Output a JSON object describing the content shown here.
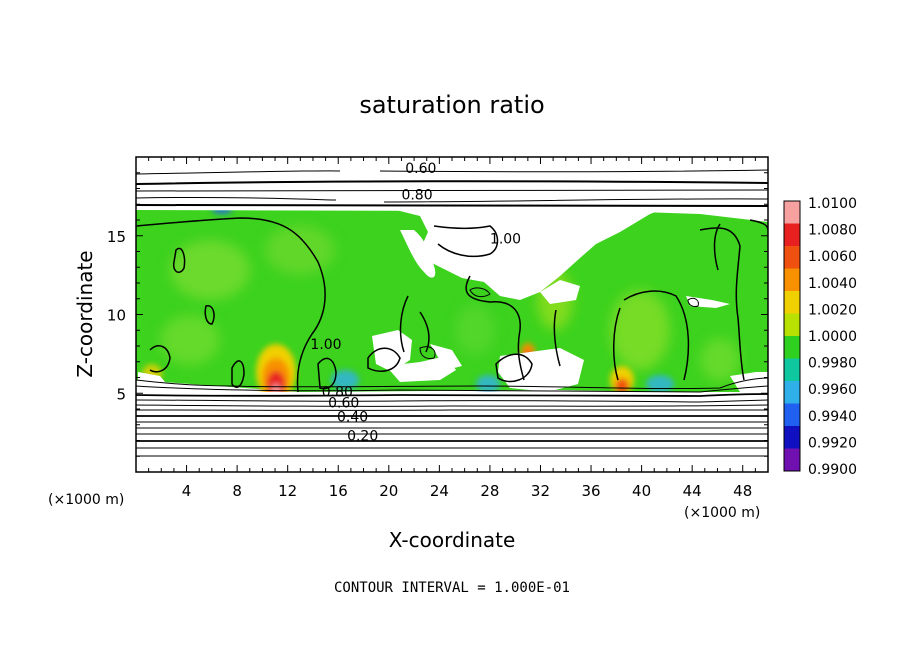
{
  "chart_data": {
    "type": "heatmap",
    "title": "saturation ratio",
    "xlabel": "X-coordinate",
    "ylabel": "Z-coordinate",
    "x_unit_left": "(×1000 m)",
    "x_unit_right": "(×1000 m)",
    "xlim": [
      0,
      50
    ],
    "ylim": [
      0,
      20
    ],
    "xticks": [
      "4",
      "8",
      "12",
      "16",
      "20",
      "24",
      "28",
      "32",
      "36",
      "40",
      "44",
      "48"
    ],
    "yticks": [
      "5",
      "10",
      "15"
    ],
    "footer": "CONTOUR INTERVAL = 1.000E-01",
    "colorbar": {
      "labels": [
        "1.0100",
        "1.0080",
        "1.0060",
        "1.0040",
        "1.0020",
        "1.0000",
        "0.9980",
        "0.9960",
        "0.9940",
        "0.9920",
        "0.9900"
      ],
      "colors": [
        "#f7a0a0",
        "#e82020",
        "#f05010",
        "#f89000",
        "#f0d000",
        "#b8e000",
        "#30d020",
        "#10c8a0",
        "#30b0e8",
        "#2060f0",
        "#1010c0",
        "#7010b0"
      ]
    },
    "contour_labels": [
      {
        "text": "0.60",
        "x": 21.3,
        "z": 19.0
      },
      {
        "text": "0.80",
        "x": 21.0,
        "z": 17.3
      },
      {
        "text": "1.00",
        "x": 28.0,
        "z": 14.5
      },
      {
        "text": "1.00",
        "x": 13.8,
        "z": 7.8
      },
      {
        "text": "0.80",
        "x": 14.7,
        "z": 4.8
      },
      {
        "text": "0.60",
        "x": 15.2,
        "z": 4.1
      },
      {
        "text": "0.40",
        "x": 15.9,
        "z": 3.2
      },
      {
        "text": "0.20",
        "x": 16.7,
        "z": 2.0
      }
    ],
    "grid": false
  }
}
